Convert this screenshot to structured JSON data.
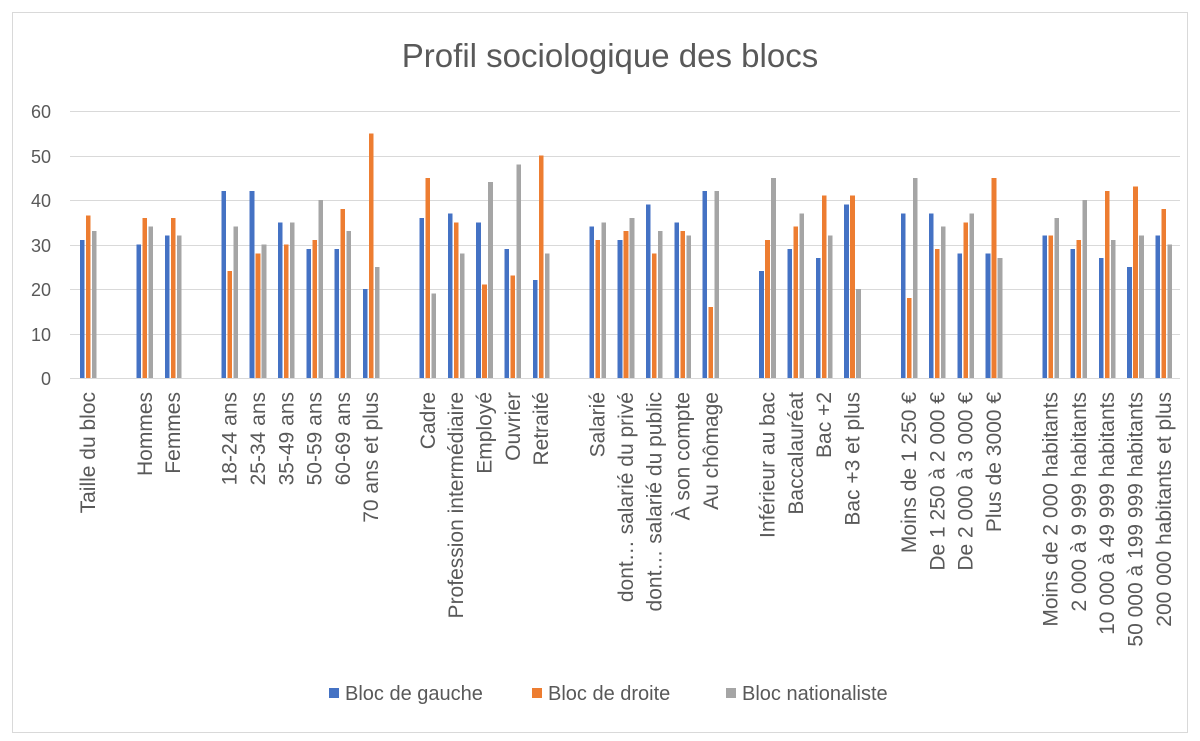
{
  "chart_data": {
    "type": "bar",
    "title": "Profil sociologique des blocs",
    "xlabel": "",
    "ylabel": "",
    "ylim": [
      0,
      60
    ],
    "yticks": [
      0,
      10,
      20,
      30,
      40,
      50,
      60
    ],
    "grid": true,
    "legend": "bottom",
    "categories": [
      "Taille du bloc",
      "",
      "Hommes",
      "Femmes",
      "",
      "18-24 ans",
      "25-34 ans",
      "35-49 ans",
      "50-59 ans",
      "60-69 ans",
      "70 ans et plus",
      "",
      "Cadre",
      "Profession intermédiaire",
      "Employé",
      "Ouvrier",
      "Retraité",
      "",
      "Salarié",
      "dont… salarié du privé",
      "dont… salarié du public",
      "À son compte",
      "Au chômage",
      "",
      "Inférieur au bac",
      "Baccalauréat",
      "Bac +2",
      "Bac +3 et plus",
      "",
      "Moins de 1 250 €",
      "De 1 250 à 2 000 €",
      "De 2 000 à 3 000 €",
      "Plus de 3000 €",
      "",
      "Moins de 2 000 habitants",
      "2 000 à 9 999 habitants",
      "10 000 à 49 999 habitants",
      "50 000 à 199 999 habitants",
      "200 000 habitants et plus"
    ],
    "series": [
      {
        "name": "Bloc de gauche",
        "color": "#4472C4",
        "values": [
          31,
          null,
          30,
          32,
          null,
          42,
          42,
          35,
          29,
          29,
          20,
          null,
          36,
          37,
          35,
          29,
          22,
          null,
          34,
          31,
          39,
          35,
          42,
          null,
          24,
          29,
          27,
          39,
          null,
          37,
          37,
          28,
          28,
          null,
          32,
          29,
          27,
          25,
          32
        ]
      },
      {
        "name": "Bloc de droite",
        "color": "#ED7D31",
        "values": [
          36.5,
          null,
          36,
          36,
          null,
          24,
          28,
          30,
          31,
          38,
          55,
          null,
          45,
          35,
          21,
          23,
          50,
          null,
          31,
          33,
          28,
          33,
          16,
          null,
          31,
          34,
          41,
          41,
          null,
          18,
          29,
          35,
          45,
          null,
          32,
          31,
          42,
          43,
          38
        ]
      },
      {
        "name": "Bloc nationaliste",
        "color": "#A5A5A5",
        "values": [
          33,
          null,
          34,
          32,
          null,
          34,
          30,
          35,
          40,
          33,
          25,
          null,
          19,
          28,
          44,
          48,
          28,
          null,
          35,
          36,
          33,
          32,
          42,
          null,
          45,
          37,
          32,
          20,
          null,
          45,
          34,
          37,
          27,
          null,
          36,
          40,
          31,
          32,
          30
        ]
      }
    ]
  }
}
